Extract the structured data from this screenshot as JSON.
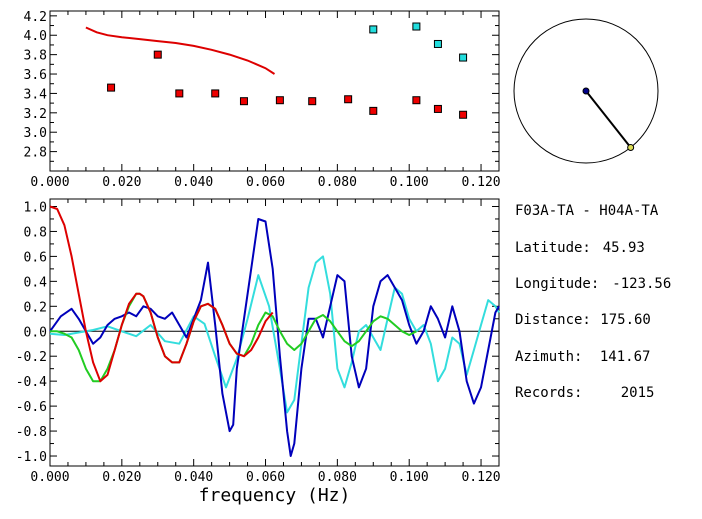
{
  "chart_data": [
    {
      "type": "scatter",
      "xlim": [
        0.0,
        0.125
      ],
      "ylim": [
        2.6,
        4.25
      ],
      "x_ticks": [
        "0.000",
        "0.020",
        "0.040",
        "0.060",
        "0.080",
        "0.100",
        "0.120"
      ],
      "y_ticks": [
        "2.8",
        "3.0",
        "3.2",
        "3.4",
        "3.6",
        "3.8",
        "4.0",
        "4.2"
      ],
      "grid": false,
      "curve": {
        "color": "#dd0000",
        "x": [
          0.01,
          0.013,
          0.016,
          0.02,
          0.025,
          0.03,
          0.035,
          0.04,
          0.045,
          0.05,
          0.055,
          0.06,
          0.0625
        ],
        "y": [
          4.08,
          4.03,
          4.0,
          3.98,
          3.96,
          3.94,
          3.92,
          3.89,
          3.85,
          3.8,
          3.74,
          3.66,
          3.6
        ]
      },
      "series": [
        {
          "color": "#ee0000",
          "x": [
            0.017,
            0.03,
            0.036,
            0.046,
            0.054,
            0.064,
            0.073,
            0.083,
            0.09,
            0.102,
            0.108,
            0.115
          ],
          "y": [
            3.46,
            3.8,
            3.4,
            3.4,
            3.32,
            3.33,
            3.32,
            3.34,
            3.22,
            3.33,
            3.24,
            3.18
          ]
        },
        {
          "color": "#22dddd",
          "x": [
            0.09,
            0.102,
            0.108,
            0.115
          ],
          "y": [
            4.06,
            4.09,
            3.91,
            3.77
          ]
        }
      ]
    },
    {
      "type": "line",
      "xlim": [
        0.0,
        0.125
      ],
      "ylim": [
        -1.08,
        1.06
      ],
      "x_ticks": [
        "0.000",
        "0.020",
        "0.040",
        "0.060",
        "0.080",
        "0.100",
        "0.120"
      ],
      "y_ticks": [
        "-1.0",
        "-0.8",
        "-0.6",
        "-0.4",
        "-0.2",
        "0.0",
        "0.2",
        "0.4",
        "0.6",
        "0.8",
        "1.0"
      ],
      "xlabel": "frequency (Hz)",
      "zero_line": true,
      "series": [
        {
          "color": "#0000bb",
          "x": [
            0.0,
            0.003,
            0.006,
            0.008,
            0.01,
            0.012,
            0.014,
            0.016,
            0.018,
            0.02,
            0.022,
            0.024,
            0.026,
            0.028,
            0.03,
            0.032,
            0.034,
            0.036,
            0.038,
            0.04,
            0.042,
            0.044,
            0.046,
            0.048,
            0.05,
            0.051,
            0.052,
            0.054,
            0.056,
            0.058,
            0.06,
            0.062,
            0.064,
            0.066,
            0.067,
            0.068,
            0.07,
            0.072,
            0.074,
            0.076,
            0.078,
            0.08,
            0.082,
            0.084,
            0.086,
            0.088,
            0.09,
            0.092,
            0.094,
            0.096,
            0.098,
            0.1,
            0.102,
            0.104,
            0.106,
            0.108,
            0.11,
            0.112,
            0.114,
            0.116,
            0.118,
            0.12,
            0.122,
            0.124,
            0.125
          ],
          "y": [
            0.0,
            0.12,
            0.18,
            0.1,
            0.0,
            -0.1,
            -0.05,
            0.05,
            0.1,
            0.12,
            0.15,
            0.12,
            0.2,
            0.18,
            0.12,
            0.1,
            0.15,
            0.05,
            -0.05,
            0.1,
            0.25,
            0.55,
            0.05,
            -0.5,
            -0.8,
            -0.75,
            -0.3,
            0.1,
            0.5,
            0.9,
            0.88,
            0.5,
            -0.2,
            -0.8,
            -1.0,
            -0.9,
            -0.3,
            0.1,
            0.1,
            -0.05,
            0.2,
            0.45,
            0.4,
            -0.2,
            -0.45,
            -0.3,
            0.2,
            0.4,
            0.45,
            0.35,
            0.25,
            0.05,
            -0.1,
            0.0,
            0.2,
            0.1,
            -0.05,
            0.2,
            0.0,
            -0.4,
            -0.58,
            -0.45,
            -0.15,
            0.15,
            0.2
          ]
        },
        {
          "color": "#33dddd",
          "x": [
            0.0,
            0.004,
            0.008,
            0.012,
            0.016,
            0.02,
            0.024,
            0.028,
            0.032,
            0.036,
            0.04,
            0.043,
            0.046,
            0.049,
            0.052,
            0.055,
            0.058,
            0.061,
            0.064,
            0.066,
            0.068,
            0.07,
            0.072,
            0.074,
            0.076,
            0.078,
            0.08,
            0.082,
            0.084,
            0.086,
            0.088,
            0.09,
            0.092,
            0.094,
            0.096,
            0.098,
            0.1,
            0.102,
            0.104,
            0.106,
            0.108,
            0.11,
            0.112,
            0.114,
            0.116,
            0.118,
            0.12,
            0.122,
            0.124,
            0.125
          ],
          "y": [
            -0.02,
            -0.03,
            -0.01,
            0.01,
            0.04,
            0.0,
            -0.04,
            0.05,
            -0.08,
            -0.1,
            0.12,
            0.06,
            -0.2,
            -0.45,
            -0.22,
            0.1,
            0.45,
            0.2,
            -0.3,
            -0.65,
            -0.55,
            -0.1,
            0.35,
            0.55,
            0.6,
            0.3,
            -0.3,
            -0.45,
            -0.25,
            0.0,
            0.05,
            -0.05,
            -0.15,
            0.1,
            0.35,
            0.3,
            0.1,
            0.0,
            0.05,
            -0.1,
            -0.4,
            -0.3,
            -0.05,
            -0.1,
            -0.35,
            -0.15,
            0.05,
            0.25,
            0.2,
            0.15
          ]
        },
        {
          "color": "#dd0000",
          "x": [
            0.0,
            0.002,
            0.004,
            0.006,
            0.008,
            0.01,
            0.012,
            0.014,
            0.016,
            0.018,
            0.02,
            0.022,
            0.024,
            0.025,
            0.026,
            0.028,
            0.03,
            0.032,
            0.034,
            0.036,
            0.038,
            0.04,
            0.042,
            0.044,
            0.046,
            0.048,
            0.05,
            0.052,
            0.054,
            0.056,
            0.058,
            0.06,
            0.062
          ],
          "y": [
            1.0,
            0.98,
            0.85,
            0.6,
            0.3,
            0.0,
            -0.25,
            -0.4,
            -0.35,
            -0.15,
            0.05,
            0.22,
            0.3,
            0.3,
            0.28,
            0.15,
            -0.05,
            -0.2,
            -0.25,
            -0.25,
            -0.1,
            0.08,
            0.2,
            0.22,
            0.18,
            0.05,
            -0.1,
            -0.18,
            -0.2,
            -0.15,
            -0.05,
            0.08,
            0.15
          ]
        },
        {
          "color": "#22cc22",
          "x": [
            0.0,
            0.002,
            0.004,
            0.006,
            0.008,
            0.01,
            0.012,
            0.014,
            0.016,
            0.018,
            0.02,
            0.022,
            0.024,
            0.025,
            0.026,
            0.028,
            0.03,
            0.032,
            0.034,
            0.036,
            0.038,
            0.04,
            0.042,
            0.044,
            0.046,
            0.048,
            0.05,
            0.052,
            0.054,
            0.056,
            0.058,
            0.06,
            0.062,
            0.064,
            0.066,
            0.068,
            0.07,
            0.072,
            0.074,
            0.076,
            0.078,
            0.08,
            0.082,
            0.084,
            0.086,
            0.088,
            0.09,
            0.092,
            0.094,
            0.096,
            0.098,
            0.1,
            0.102
          ],
          "y": [
            0.0,
            0.0,
            -0.02,
            -0.05,
            -0.15,
            -0.3,
            -0.4,
            -0.4,
            -0.3,
            -0.15,
            0.05,
            0.2,
            0.3,
            0.3,
            0.28,
            0.15,
            -0.05,
            -0.2,
            -0.25,
            -0.25,
            -0.1,
            0.08,
            0.2,
            0.22,
            0.18,
            0.05,
            -0.1,
            -0.18,
            -0.2,
            -0.1,
            0.05,
            0.15,
            0.12,
            0.0,
            -0.1,
            -0.15,
            -0.1,
            0.0,
            0.1,
            0.13,
            0.08,
            0.0,
            -0.08,
            -0.12,
            -0.08,
            0.0,
            0.08,
            0.12,
            0.1,
            0.05,
            0.0,
            -0.03,
            0.0
          ]
        }
      ]
    },
    {
      "type": "scatter",
      "description_shape": "polar",
      "azimuth_deg": 141.67,
      "center_color": "#000088",
      "endpoint_color": "#dddd55",
      "line_color": "#000000"
    }
  ],
  "info": {
    "title": "F03A-TA - H04A-TA",
    "rows": [
      {
        "label": "Latitude:",
        "value": "45.93"
      },
      {
        "label": "Longitude:",
        "value": "-123.56"
      },
      {
        "label": "Distance:",
        "value": "175.60"
      },
      {
        "label": "Azimuth:",
        "value": "141.67"
      },
      {
        "label": "Records:",
        "value": "2015"
      }
    ]
  }
}
